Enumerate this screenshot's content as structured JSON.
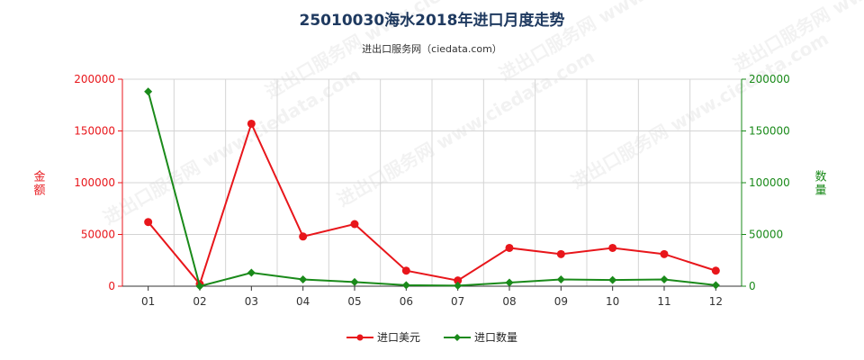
{
  "header": {
    "title": "25010030海水2018年进口月度走势",
    "subtitle": "进出口服务网（ciedata.com）"
  },
  "watermark": "进出口服务网 www.ciedata.com",
  "chart_data": {
    "type": "line",
    "categories": [
      "01",
      "02",
      "03",
      "04",
      "05",
      "06",
      "07",
      "08",
      "09",
      "10",
      "11",
      "12"
    ],
    "series": [
      {
        "name": "进口美元",
        "axis": "left",
        "color": "#e8161b",
        "values": [
          62000,
          2000,
          157000,
          48000,
          60000,
          15000,
          5500,
          37000,
          31000,
          37000,
          31000,
          15000
        ]
      },
      {
        "name": "进口数量",
        "axis": "right",
        "color": "#1a8a1a",
        "values": [
          188000,
          0,
          13000,
          6500,
          4000,
          1000,
          500,
          3500,
          6500,
          6000,
          6500,
          1000
        ]
      }
    ],
    "y_left": {
      "label": "金额",
      "min": 0,
      "max": 200000,
      "ticks": [
        "0",
        "50000",
        "100000",
        "150000",
        "200000"
      ],
      "color": "#e8161b"
    },
    "y_right": {
      "label": "数量",
      "min": 0,
      "max": 200000,
      "ticks": [
        "0",
        "50000",
        "100000",
        "150000",
        "200000"
      ],
      "color": "#1a8a1a"
    },
    "grid": true,
    "legend_position": "bottom"
  }
}
